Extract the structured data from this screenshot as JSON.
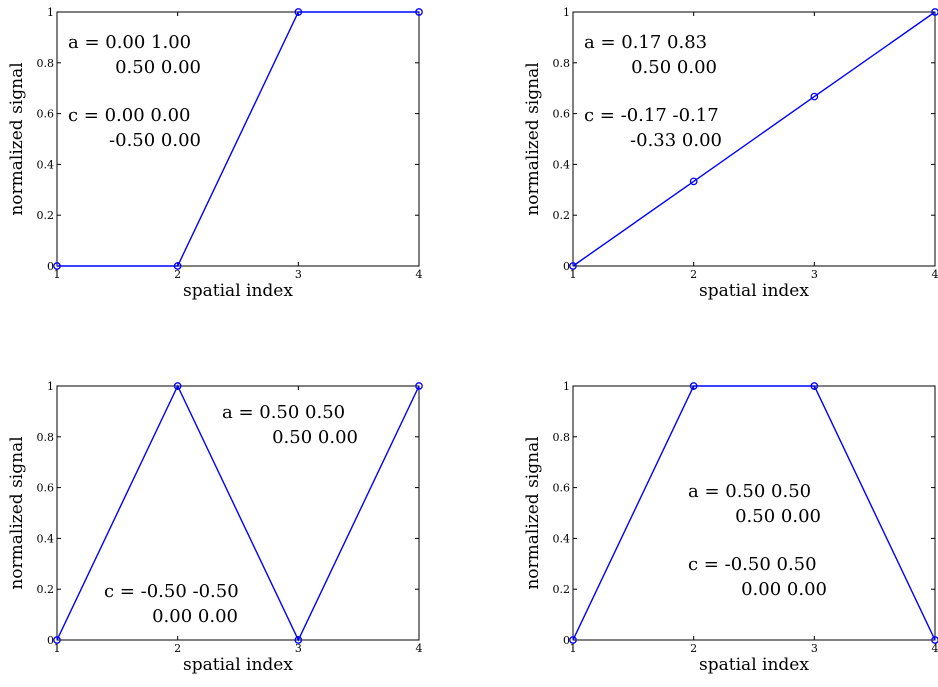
{
  "chart_data": [
    {
      "type": "line",
      "x": [
        1,
        2,
        3,
        4
      ],
      "series": [
        {
          "values": [
            0,
            0,
            1,
            1
          ],
          "color": "#0000ff"
        }
      ],
      "xlabel": "spatial index",
      "ylabel": "normalized signal",
      "xlim": [
        1,
        4
      ],
      "ylim": [
        0,
        1
      ],
      "xticks": [
        "1",
        "2",
        "3",
        "4"
      ],
      "yticks": [
        "0",
        "0.2",
        "0.4",
        "0.6",
        "0.8",
        "1"
      ],
      "grid": false,
      "annotations": [
        "a = 0.00 1.00",
        "0.50 0.00",
        "c = 0.00 0.00",
        "-0.50 0.00"
      ]
    },
    {
      "type": "line",
      "x": [
        1,
        2,
        3,
        4
      ],
      "series": [
        {
          "values": [
            0,
            0.333,
            0.667,
            1
          ],
          "color": "#0000ff"
        }
      ],
      "xlabel": "spatial index",
      "ylabel": "normalized signal",
      "xlim": [
        1,
        4
      ],
      "ylim": [
        0,
        1
      ],
      "xticks": [
        "1",
        "2",
        "3",
        "4"
      ],
      "yticks": [
        "0",
        "0.2",
        "0.4",
        "0.6",
        "0.8",
        "1"
      ],
      "grid": false,
      "annotations": [
        "a = 0.17 0.83",
        "0.50 0.00",
        "c = -0.17 -0.17",
        "-0.33 0.00"
      ]
    },
    {
      "type": "line",
      "x": [
        1,
        2,
        3,
        4
      ],
      "series": [
        {
          "values": [
            0,
            1,
            0,
            1
          ],
          "color": "#0000ff"
        }
      ],
      "xlabel": "spatial index",
      "ylabel": "normalized signal",
      "xlim": [
        1,
        4
      ],
      "ylim": [
        0,
        1
      ],
      "xticks": [
        "1",
        "2",
        "3",
        "4"
      ],
      "yticks": [
        "0",
        "0.2",
        "0.4",
        "0.6",
        "0.8",
        "1"
      ],
      "grid": false,
      "annotations": [
        "a = 0.50 0.50",
        "0.50 0.00",
        "c = -0.50 -0.50",
        "0.00 0.00"
      ]
    },
    {
      "type": "line",
      "x": [
        1,
        2,
        3,
        4
      ],
      "series": [
        {
          "values": [
            0,
            1,
            1,
            0
          ],
          "color": "#0000ff"
        }
      ],
      "xlabel": "spatial index",
      "ylabel": "normalized signal",
      "xlim": [
        1,
        4
      ],
      "ylim": [
        0,
        1
      ],
      "xticks": [
        "1",
        "2",
        "3",
        "4"
      ],
      "yticks": [
        "0",
        "0.2",
        "0.4",
        "0.6",
        "0.8",
        "1"
      ],
      "grid": false,
      "annotations": [
        "a = 0.50 0.50",
        "0.50 0.00",
        "c = -0.50 0.50",
        "0.00 0.00"
      ]
    }
  ]
}
